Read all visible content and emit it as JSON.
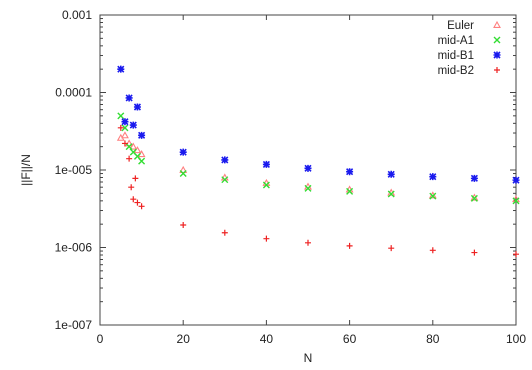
{
  "chart_data": {
    "type": "scatter",
    "xlabel": "N",
    "ylabel": "||F||/N",
    "xlim": [
      0,
      100
    ],
    "ylim": [
      1e-07,
      0.001
    ],
    "yscale": "log",
    "grid": false,
    "legend_position": "top-right",
    "xticks": [
      0,
      20,
      40,
      60,
      80,
      100
    ],
    "xtick_labels": [
      "0",
      "20",
      "40",
      "60",
      "80",
      "100"
    ],
    "yticks": [
      1e-07,
      1e-06,
      1e-05,
      0.0001,
      0.001
    ],
    "ytick_labels": [
      "1e-007",
      "1e-006",
      "1e-005",
      "0.0001",
      "0.001"
    ],
    "series": [
      {
        "name": "Euler",
        "marker": "triangle",
        "color": "#ff7f7f",
        "points": [
          [
            5,
            2.6e-05
          ],
          [
            6,
            2.8e-05
          ],
          [
            7,
            2.2e-05
          ],
          [
            8,
            2e-05
          ],
          [
            9,
            1.8e-05
          ],
          [
            10,
            1.6e-05
          ],
          [
            20,
            1e-05
          ],
          [
            30,
            8e-06
          ],
          [
            40,
            6.8e-06
          ],
          [
            50,
            6.1e-06
          ],
          [
            60,
            5.6e-06
          ],
          [
            70,
            5.1e-06
          ],
          [
            80,
            4.7e-06
          ],
          [
            90,
            4.4e-06
          ],
          [
            100,
            4.2e-06
          ]
        ]
      },
      {
        "name": "mid-A1",
        "marker": "x",
        "color": "#33dd33",
        "points": [
          [
            5,
            5e-05
          ],
          [
            6,
            3.5e-05
          ],
          [
            7,
            2e-05
          ],
          [
            8,
            1.7e-05
          ],
          [
            9,
            1.5e-05
          ],
          [
            10,
            1.3e-05
          ],
          [
            20,
            9e-06
          ],
          [
            30,
            7.5e-06
          ],
          [
            40,
            6.4e-06
          ],
          [
            50,
            5.8e-06
          ],
          [
            60,
            5.3e-06
          ],
          [
            70,
            4.9e-06
          ],
          [
            80,
            4.6e-06
          ],
          [
            90,
            4.3e-06
          ],
          [
            100,
            4e-06
          ]
        ]
      },
      {
        "name": "mid-B1",
        "marker": "star",
        "color": "#1a1aee",
        "points": [
          [
            5,
            0.0002
          ],
          [
            6,
            4.2e-05
          ],
          [
            7,
            8.5e-05
          ],
          [
            8,
            3.8e-05
          ],
          [
            9,
            6.5e-05
          ],
          [
            10,
            2.8e-05
          ],
          [
            20,
            1.7e-05
          ],
          [
            30,
            1.35e-05
          ],
          [
            40,
            1.18e-05
          ],
          [
            50,
            1.05e-05
          ],
          [
            60,
            9.5e-06
          ],
          [
            70,
            8.8e-06
          ],
          [
            80,
            8.2e-06
          ],
          [
            90,
            7.8e-06
          ],
          [
            100,
            7.4e-06
          ]
        ]
      },
      {
        "name": "mid-B2",
        "marker": "plus",
        "color": "#ee2222",
        "points": [
          [
            5,
            3.5e-05
          ],
          [
            6,
            2.2e-05
          ],
          [
            7,
            1.4e-05
          ],
          [
            7.5,
            6e-06
          ],
          [
            8,
            4.2e-06
          ],
          [
            8.5,
            7.8e-06
          ],
          [
            9,
            3.8e-06
          ],
          [
            10,
            3.4e-06
          ],
          [
            20,
            1.95e-06
          ],
          [
            30,
            1.55e-06
          ],
          [
            40,
            1.3e-06
          ],
          [
            50,
            1.15e-06
          ],
          [
            60,
            1.05e-06
          ],
          [
            70,
            9.8e-07
          ],
          [
            80,
            9.2e-07
          ],
          [
            90,
            8.6e-07
          ],
          [
            100,
            8.2e-07
          ]
        ]
      }
    ]
  }
}
